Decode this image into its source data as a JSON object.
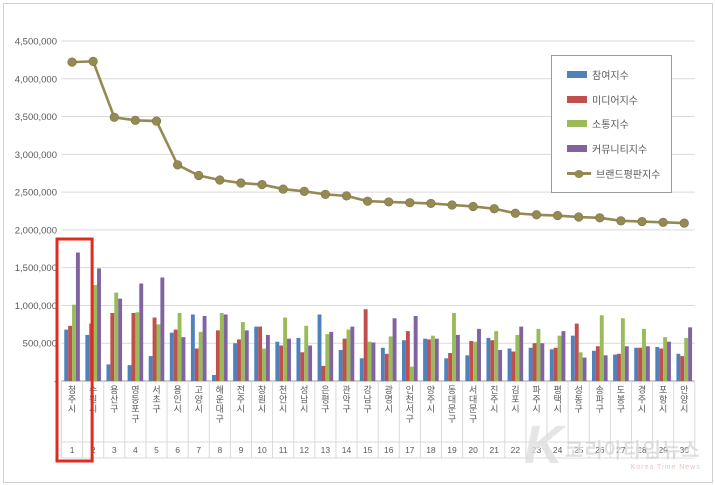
{
  "watermark": {
    "logo": "K",
    "text": "코리아타임뉴스",
    "subtext": "Korea Time News"
  },
  "chart_data": {
    "type": "bar",
    "title": "",
    "categories": [
      "청주시",
      "수원시",
      "용산구",
      "영등포구",
      "서초구",
      "용인시",
      "고양시",
      "해운대구",
      "전주시",
      "창원시",
      "천안시",
      "성남시",
      "은평구",
      "관악구",
      "강남구",
      "광명시",
      "인천서구",
      "양주시",
      "동대문구",
      "서대문구",
      "진주시",
      "김포시",
      "파주시",
      "평택시",
      "성동구",
      "송파구",
      "도봉구",
      "경주시",
      "포항시",
      "안양시"
    ],
    "ranks": [
      "1",
      "2",
      "3",
      "4",
      "5",
      "6",
      "7",
      "8",
      "9",
      "10",
      "11",
      "12",
      "13",
      "14",
      "15",
      "16",
      "17",
      "18",
      "19",
      "20",
      "21",
      "22",
      "23",
      "24",
      "25",
      "26",
      "27",
      "28",
      "29",
      "30"
    ],
    "series": [
      {
        "name": "참여지수",
        "type": "bar",
        "color": "#4F81BD",
        "values": [
          680000,
          610000,
          220000,
          210000,
          330000,
          640000,
          880000,
          80000,
          500000,
          720000,
          520000,
          570000,
          880000,
          410000,
          300000,
          440000,
          540000,
          560000,
          300000,
          340000,
          570000,
          430000,
          440000,
          420000,
          600000,
          400000,
          350000,
          440000,
          450000,
          360000
        ]
      },
      {
        "name": "미디어지수",
        "type": "bar",
        "color": "#C0504D",
        "values": [
          730000,
          760000,
          900000,
          900000,
          840000,
          680000,
          430000,
          670000,
          550000,
          720000,
          470000,
          380000,
          200000,
          560000,
          950000,
          360000,
          660000,
          550000,
          370000,
          530000,
          540000,
          390000,
          500000,
          440000,
          760000,
          460000,
          360000,
          440000,
          430000,
          330000
        ]
      },
      {
        "name": "소통지수",
        "type": "bar",
        "color": "#9BBB59",
        "values": [
          1010000,
          1270000,
          1170000,
          910000,
          750000,
          900000,
          650000,
          900000,
          780000,
          430000,
          840000,
          730000,
          620000,
          680000,
          520000,
          590000,
          190000,
          600000,
          900000,
          520000,
          660000,
          610000,
          690000,
          600000,
          380000,
          870000,
          830000,
          690000,
          580000,
          570000
        ]
      },
      {
        "name": "커뮤니티지수",
        "type": "bar",
        "color": "#8064A2",
        "values": [
          1700000,
          1490000,
          1090000,
          1290000,
          1370000,
          580000,
          860000,
          880000,
          670000,
          610000,
          560000,
          470000,
          650000,
          720000,
          510000,
          830000,
          860000,
          560000,
          610000,
          690000,
          410000,
          720000,
          500000,
          660000,
          310000,
          340000,
          460000,
          460000,
          520000,
          710000
        ]
      },
      {
        "name": "브랜드평판지수",
        "type": "line",
        "color": "#948A54",
        "values": [
          4220000,
          4230000,
          3490000,
          3450000,
          3440000,
          2860000,
          2720000,
          2660000,
          2620000,
          2600000,
          2540000,
          2510000,
          2470000,
          2450000,
          2380000,
          2370000,
          2360000,
          2350000,
          2330000,
          2310000,
          2280000,
          2220000,
          2200000,
          2190000,
          2170000,
          2160000,
          2120000,
          2110000,
          2100000,
          2090000
        ]
      }
    ],
    "yaxis": {
      "min": 0,
      "max": 4500000,
      "step": 500000,
      "tick_labels": [
        "-",
        "500,000",
        "1,000,000",
        "1,500,000",
        "2,000,000",
        "2,500,000",
        "3,000,000",
        "3,500,000",
        "4,000,000",
        "4,500,000"
      ]
    },
    "grid": true,
    "legend_position": "top-right",
    "highlight": {
      "category_index": 0,
      "color": "#e02b20"
    }
  }
}
